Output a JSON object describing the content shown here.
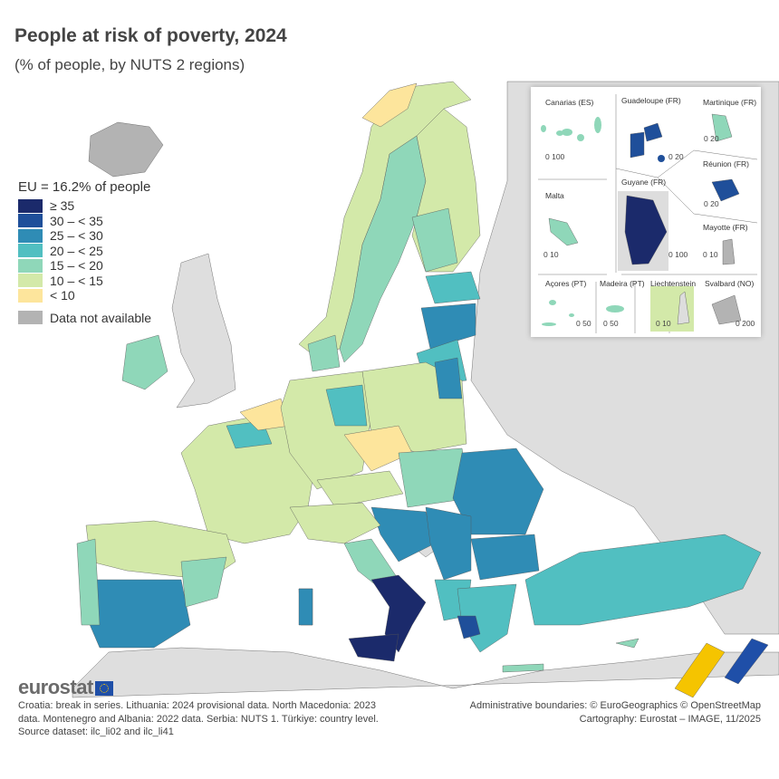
{
  "title": "People at risk of poverty, 2024",
  "subtitle": "(% of people, by NUTS 2 regions)",
  "legend": {
    "title": "EU = 16.2% of people",
    "classes": [
      {
        "label": "≥ 35",
        "color": "#1b2a6b"
      },
      {
        "label": "30 – < 35",
        "color": "#1f4f9a"
      },
      {
        "label": "25 – < 30",
        "color": "#2f8cb5"
      },
      {
        "label": "20 – < 25",
        "color": "#51bfc1"
      },
      {
        "label": "15 – < 20",
        "color": "#8fd7b9"
      },
      {
        "label": "10 – < 15",
        "color": "#d3e9a9"
      },
      {
        "label": "< 10",
        "color": "#fde59c"
      }
    ],
    "na": {
      "label": "Data not available",
      "color": "#b3b3b3"
    }
  },
  "insets": [
    {
      "name": "Canarias (ES)",
      "scale": "0  100"
    },
    {
      "name": "Guadeloupe (FR)",
      "scale": "0  20"
    },
    {
      "name": "Martinique (FR)",
      "scale": "0  20"
    },
    {
      "name": "Réunion (FR)",
      "scale": "0  20"
    },
    {
      "name": "Malta",
      "scale": "0  10"
    },
    {
      "name": "Guyane (FR)",
      "scale": "0  100"
    },
    {
      "name": "Mayotte (FR)",
      "scale": "0 10"
    },
    {
      "name": "Açores (PT)",
      "scale": "0  50"
    },
    {
      "name": "Madeira (PT)",
      "scale": "0    50"
    },
    {
      "name": "Liechtenstein",
      "scale": "0  10"
    },
    {
      "name": "Svalbard (NO)",
      "scale": "0    200"
    }
  ],
  "footer": {
    "logo": "eurostat",
    "notes": "Croatia: break in series. Lithuania: 2024 provisional data. North Macedonia: 2023 data. Montenegro and Albania: 2022 data. Serbia: NUTS 1. Türkiye: country level.",
    "source": "Source dataset: ilc_li02 and ilc_li41",
    "boundaries": "Administrative boundaries: © EuroGeographics © OpenStreetMap",
    "cartography": "Cartography: Eurostat – IMAGE, 11/2025"
  }
}
